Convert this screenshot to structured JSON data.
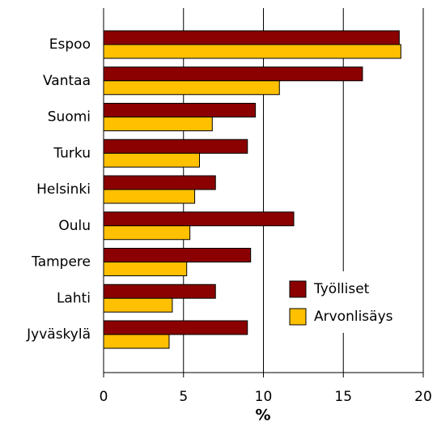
{
  "chart_data": {
    "type": "barh",
    "xlabel": "%",
    "categories": [
      "Espoo",
      "Vantaa",
      "Suomi",
      "Turku",
      "Helsinki",
      "Oulu",
      "Tampere",
      "Lahti",
      "Jyväskylä"
    ],
    "series": [
      {
        "name": "Työlliset",
        "color": "#8b0000",
        "values": [
          18.5,
          16.2,
          9.5,
          9.0,
          7.0,
          11.9,
          9.2,
          7.0,
          9.0
        ]
      },
      {
        "name": "Arvonlisäys",
        "color": "#ffc000",
        "values": [
          18.6,
          11.0,
          6.8,
          6.0,
          5.7,
          5.4,
          5.2,
          4.3,
          4.1
        ]
      }
    ],
    "xlim": [
      0,
      20
    ],
    "xticks": [
      0,
      5,
      10,
      15,
      20
    ],
    "grid": true,
    "legend": "lower right"
  }
}
